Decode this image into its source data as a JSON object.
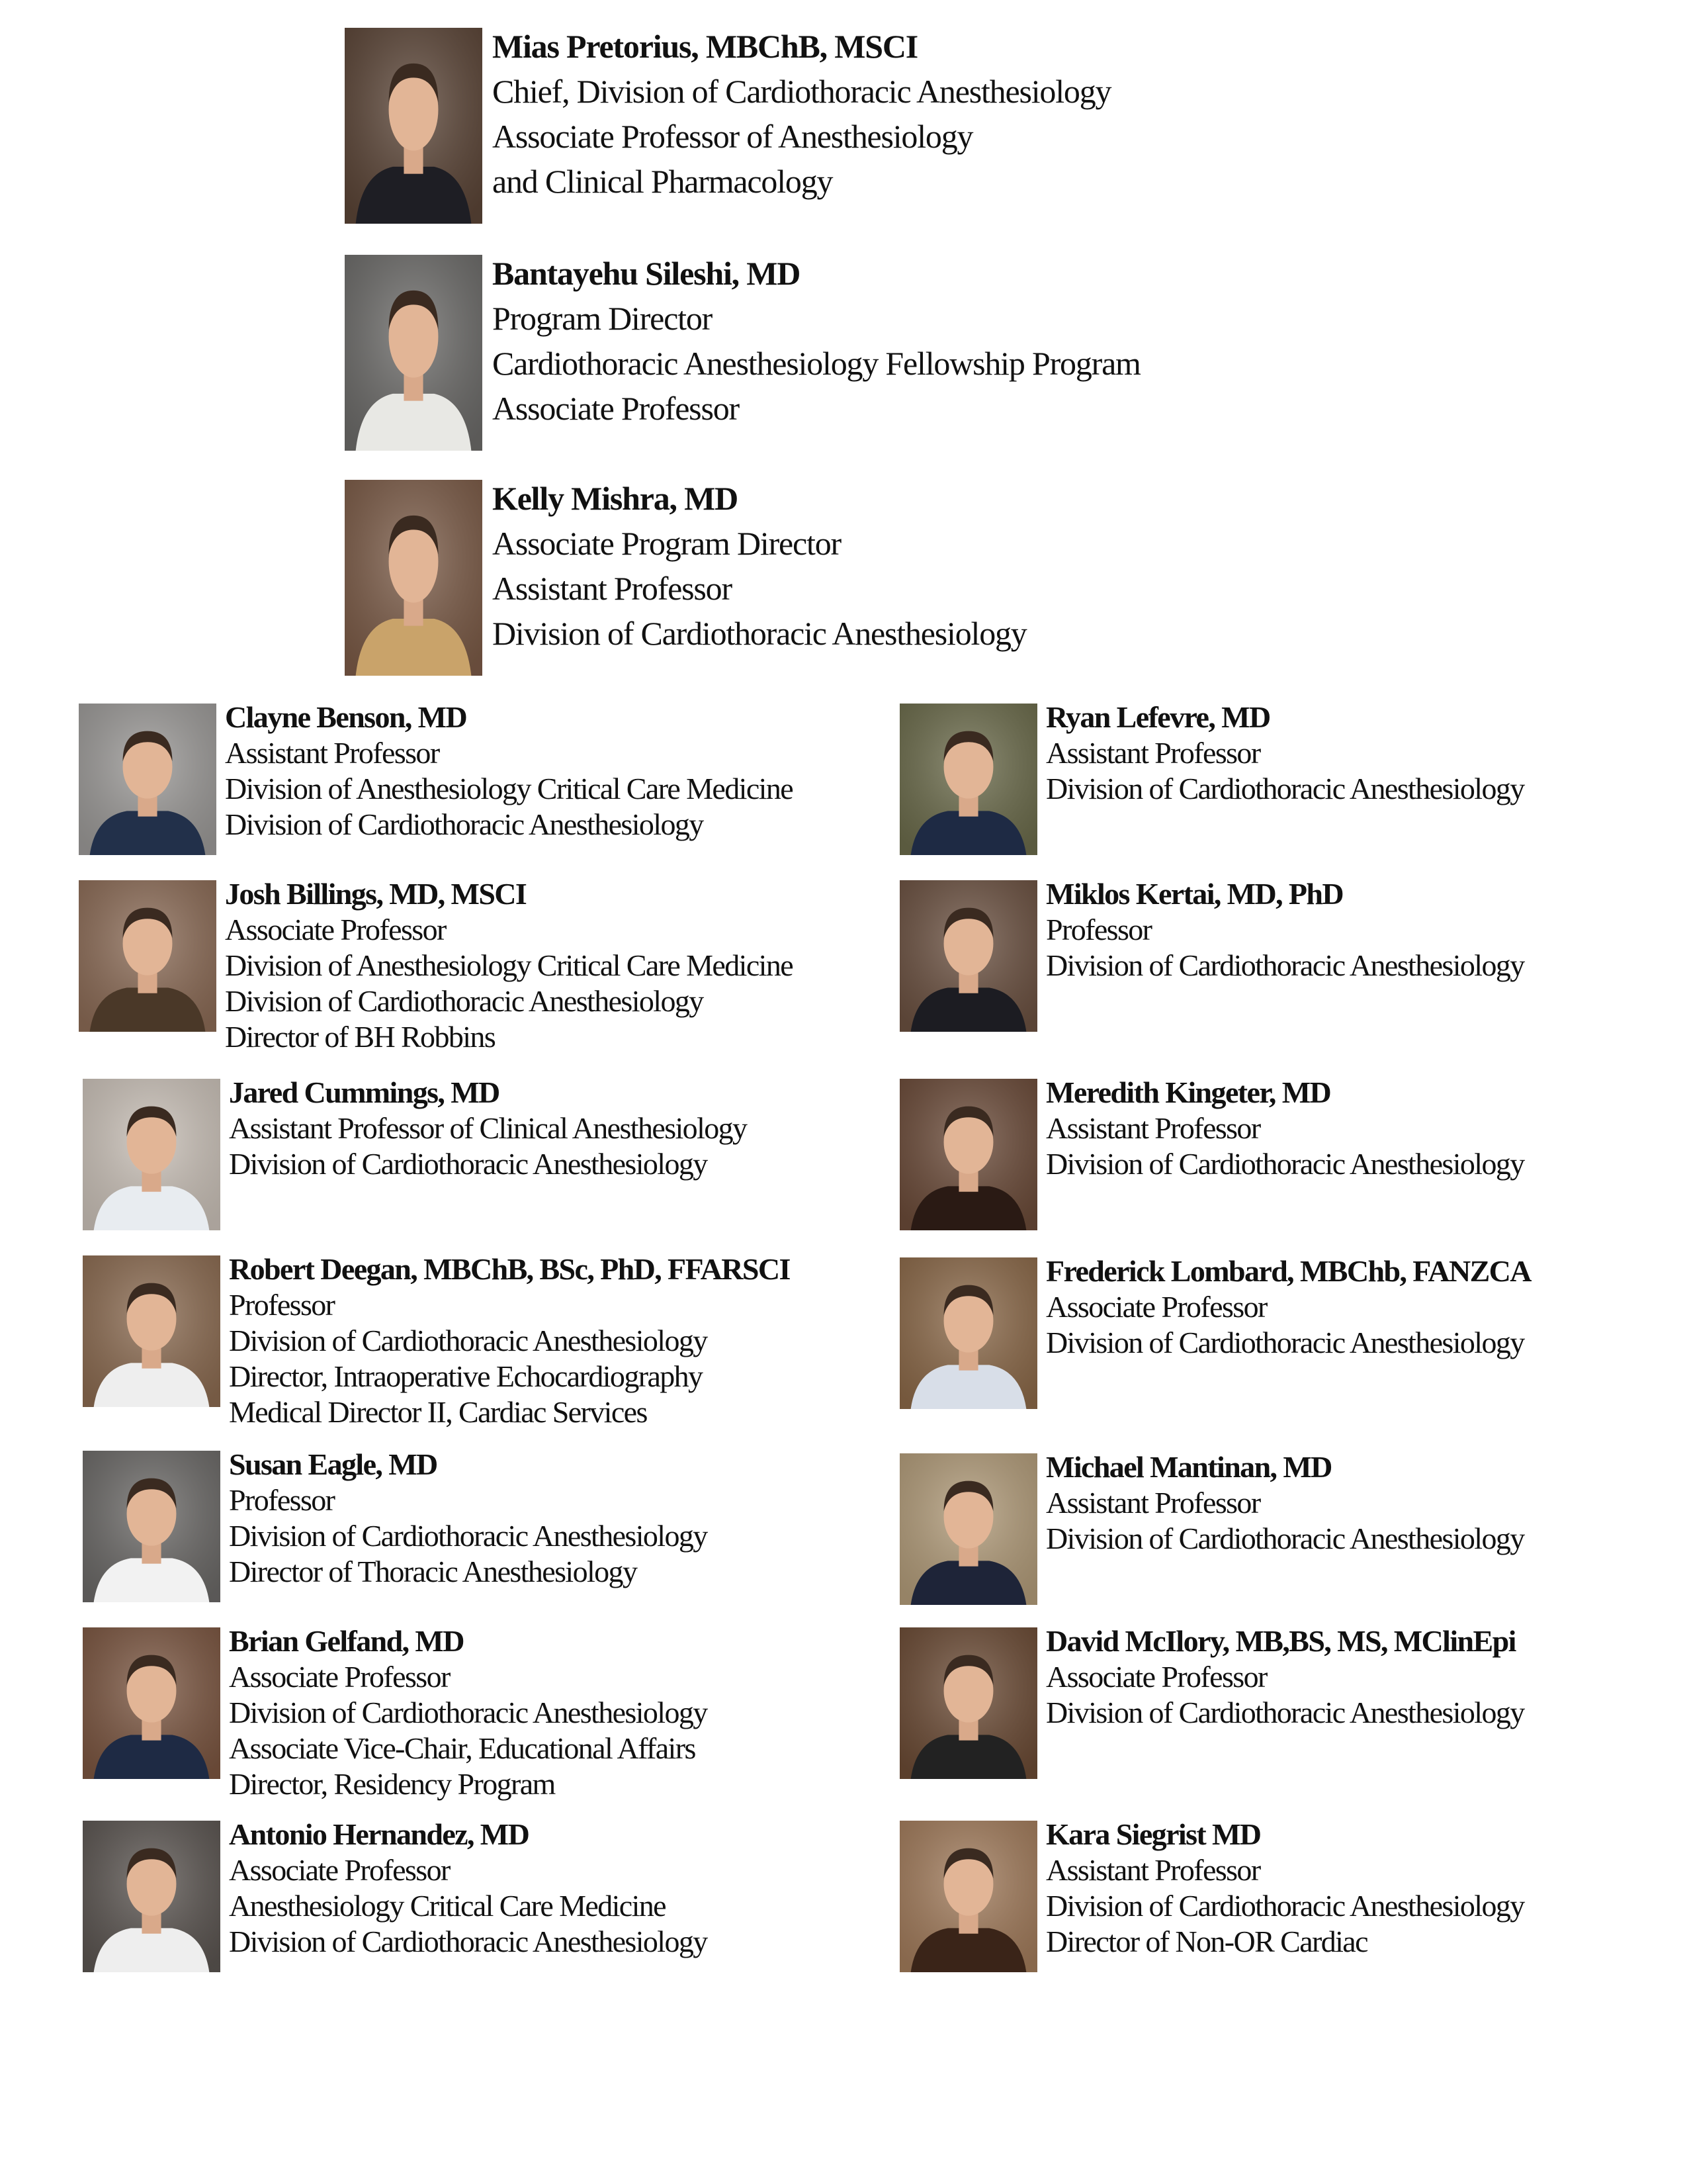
{
  "leadership": [
    {
      "name": "Mias Pretorius, MBChB, MSCI",
      "lines": [
        "Chief, Division of Cardiothoracic Anesthesiology",
        "Associate Professor of Anesthesiology",
        "and Clinical Pharmacology"
      ],
      "photo_bg": "#5a4436",
      "suit": "#1e1e24"
    },
    {
      "name": "Bantayehu Sileshi, MD",
      "lines": [
        "Program Director",
        "Cardiothoracic Anesthesiology Fellowship Program",
        "Associate Professor"
      ],
      "photo_bg": "#6b6a68",
      "suit": "#e8e8e4"
    },
    {
      "name": "Kelly Mishra, MD",
      "lines": [
        "Associate Program Director",
        "Assistant Professor",
        "Division of Cardiothoracic Anesthesiology"
      ],
      "photo_bg": "#7a5a46",
      "suit": "#c9a36a"
    }
  ],
  "left_column": [
    {
      "name": "Clayne Benson, MD",
      "lines": [
        "Assistant Professor",
        "Division of Anesthesiology Critical Care Medicine",
        "Division of Cardiothoracic Anesthesiology"
      ],
      "photo_bg": "#9a9896",
      "suit": "#22304a"
    },
    {
      "name": "Josh Billings, MD, MSCI",
      "lines": [
        "Associate Professor",
        "Division of Anesthesiology Critical Care Medicine",
        "Division of Cardiothoracic Anesthesiology",
        "Director of BH Robbins"
      ],
      "photo_bg": "#8a6a55",
      "suit": "#4a3828"
    },
    {
      "name": "Jared Cummings, MD",
      "lines": [
        "Assistant Professor of Clinical Anesthesiology",
        "Division of Cardiothoracic Anesthesiology"
      ],
      "photo_bg": "#c8bfb6",
      "suit": "#e8ecf0"
    },
    {
      "name": "Robert Deegan, MBChB, BSc, PhD, FFARSCI",
      "lines": [
        "Professor",
        "Division of Cardiothoracic Anesthesiology",
        "Director, Intraoperative Echocardiography",
        "Medical Director II, Cardiac Services"
      ],
      "photo_bg": "#8a6a50",
      "suit": "#eeeeee"
    },
    {
      "name": "Susan Eagle, MD",
      "lines": [
        "Professor",
        "Division of Cardiothoracic Anesthesiology",
        "Director of Thoracic Anesthesiology"
      ],
      "photo_bg": "#6a6866",
      "suit": "#f2f2f2"
    },
    {
      "name": "Brian Gelfand, MD",
      "lines": [
        "Associate Professor",
        "Division of Cardiothoracic Anesthesiology",
        "Associate Vice-Chair, Educational Affairs",
        "Director, Residency Program"
      ],
      "photo_bg": "#7a5540",
      "suit": "#1e2a44"
    },
    {
      "name": "Antonio Hernandez, MD",
      "lines": [
        "Associate Professor",
        "Anesthesiology Critical Care Medicine",
        "Division of Cardiothoracic Anesthesiology"
      ],
      "photo_bg": "#5a5450",
      "suit": "#eeeeee"
    }
  ],
  "right_column": [
    {
      "name": "Ryan Lefevre, MD",
      "lines": [
        "Assistant Professor",
        "Division of Cardiothoracic Anesthesiology"
      ],
      "photo_bg": "#6a6a4a",
      "suit": "#1e2a44"
    },
    {
      "name": "Miklos Kertai, MD, PhD",
      "lines": [
        "Professor",
        "Division of Cardiothoracic Anesthesiology"
      ],
      "photo_bg": "#6a5040",
      "suit": "#1c1c22"
    },
    {
      "name": "Meredith Kingeter, MD",
      "lines": [
        "Assistant Professor",
        "Division of Cardiothoracic Anesthesiology"
      ],
      "photo_bg": "#6a4a38",
      "suit": "#2a1a14"
    },
    {
      "name": "Frederick Lombard, MBChb, FANZCA",
      "lines": [
        "Associate Professor",
        "Division of Cardiothoracic Anesthesiology"
      ],
      "photo_bg": "#8a6848",
      "suit": "#d8dee8"
    },
    {
      "name": "Michael Mantinan, MD",
      "lines": [
        "Assistant Professor",
        "Division of Cardiothoracic Anesthesiology"
      ],
      "photo_bg": "#b09a78",
      "suit": "#1e2438"
    },
    {
      "name": "David McIlory, MB,BS, MS, MClinEpi",
      "lines": [
        "Associate Professor",
        "Division of Cardiothoracic Anesthesiology"
      ],
      "photo_bg": "#6a4a34",
      "suit": "#222"
    },
    {
      "name": "Kara Siegrist MD",
      "lines": [
        "Assistant Professor",
        "Division of Cardiothoracic Anesthesiology",
        "Director of Non-OR Cardiac"
      ],
      "photo_bg": "#a07a5a",
      "suit": "#3a2418"
    }
  ]
}
